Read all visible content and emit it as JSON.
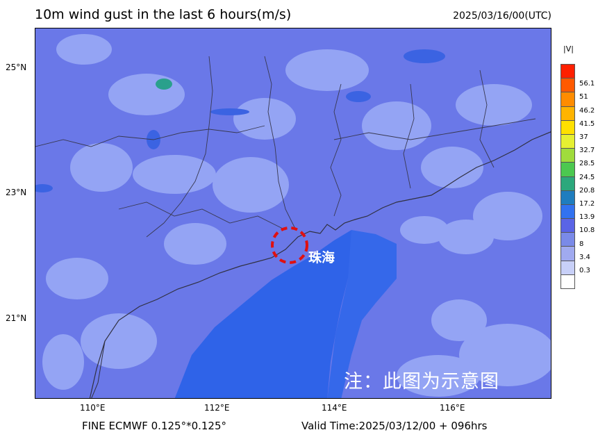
{
  "title": "10m wind gust in the last 6 hours(m/s)",
  "datetime": "2025/03/16/00(UTC)",
  "model_label": "FINE ECMWF 0.125°*0.125°",
  "valid_time": "Valid Time:2025/03/12/00 + 096hrs",
  "colorbar_unit": "|V|",
  "colorbar_levels": [
    "56.1",
    "51",
    "46.2",
    "41.5",
    "37",
    "32.7",
    "28.5",
    "24.5",
    "20.8",
    "17.2",
    "13.9",
    "10.8",
    "8",
    "3.4",
    "0.3"
  ],
  "colorbar_colors": [
    "#ff2000",
    "#ff5a00",
    "#ff8c00",
    "#ffb400",
    "#ffe000",
    "#e6f032",
    "#a0dc3c",
    "#4cc850",
    "#2ca87c",
    "#1f7dbe",
    "#3272f0",
    "#5a64e6",
    "#7a8ae8",
    "#a0aaf0",
    "#c8d0f8",
    "#ffffff"
  ],
  "lat_labels": [
    {
      "text": "25°N",
      "lat": 25
    },
    {
      "text": "23°N",
      "lat": 23
    },
    {
      "text": "21°N",
      "lat": 21
    }
  ],
  "lon_labels": [
    {
      "text": "110°E",
      "lon": 110
    },
    {
      "text": "112°E",
      "lon": 112
    },
    {
      "text": "114°E",
      "lon": 114
    },
    {
      "text": "116°E",
      "lon": 116
    }
  ],
  "annotations": {
    "city": "珠海",
    "note": "注：此图为示意图"
  },
  "colors": {
    "land_base": "#6a78e8",
    "sea": "#2f63e8",
    "light_patch": "#94a4f4",
    "coast": "#303040",
    "circle": "#e01010"
  }
}
